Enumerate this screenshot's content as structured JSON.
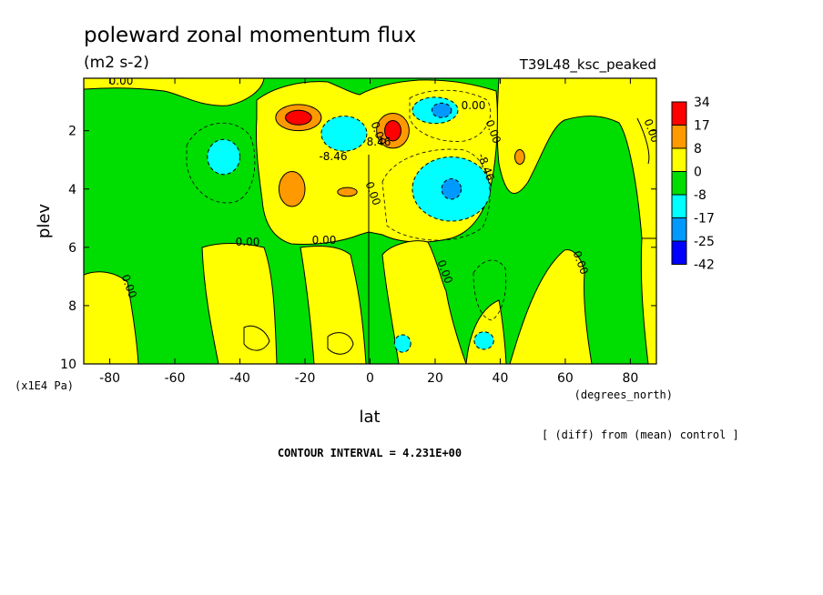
{
  "chart_data": {
    "type": "heatmap",
    "title": "poleward zonal momentum flux",
    "subtitle": "(m2 s-2)",
    "run_label": "T39L48_ksc_peaked",
    "xlabel": "lat",
    "x_units": "(degrees_north)",
    "ylabel": "plev",
    "y_units": "(x1E4 Pa)",
    "xlim": [
      -88,
      88
    ],
    "ylim": [
      10,
      0.2
    ],
    "y_inverted": true,
    "x_ticks": [
      -80,
      -60,
      -40,
      -20,
      0,
      20,
      40,
      60,
      80
    ],
    "y_ticks": [
      2,
      4,
      6,
      8,
      10
    ],
    "colorbar": {
      "levels": [
        "34",
        "17",
        "8",
        "0",
        "-8",
        "-17",
        "-25",
        "-42"
      ],
      "colors": [
        "#ff0000",
        "#ff9900",
        "#ffff00",
        "#00dd00",
        "#00ffff",
        "#0099ff",
        "#0000ff"
      ]
    },
    "background_color": "#00dd00",
    "contour_labels": [
      "0.00",
      "0.00",
      "-8.46",
      "0.00",
      "0.00",
      "0.00",
      "8.46",
      "-8.46",
      "0.00",
      "0.00",
      "0.00",
      "0.00",
      "0.00",
      "0.00"
    ],
    "features": [
      {
        "type": "positive",
        "level": 17,
        "lat": -22,
        "plev": 1.55,
        "rx": 7,
        "ry": 0.45
      },
      {
        "type": "positive",
        "level": 34,
        "lat": -22,
        "plev": 1.55,
        "rx": 4,
        "ry": 0.25
      },
      {
        "type": "positive",
        "level": 17,
        "lat": 7,
        "plev": 2.0,
        "rx": 5,
        "ry": 0.6
      },
      {
        "type": "positive",
        "level": 34,
        "lat": 7,
        "plev": 2.0,
        "rx": 2.5,
        "ry": 0.35
      },
      {
        "type": "positive",
        "level": 17,
        "lat": -24,
        "plev": 4.0,
        "rx": 4,
        "ry": 0.6
      },
      {
        "type": "positive",
        "level": 17,
        "lat": -7,
        "plev": 4.1,
        "rx": 3,
        "ry": 0.15
      },
      {
        "type": "positive",
        "level": 17,
        "lat": 46,
        "plev": 2.9,
        "rx": 1.5,
        "ry": 0.25
      },
      {
        "type": "negative",
        "level": -17,
        "lat": -45,
        "plev": 2.9,
        "rx": 5,
        "ry": 0.6
      },
      {
        "type": "negative",
        "level": -17,
        "lat": -8,
        "plev": 2.1,
        "rx": 7,
        "ry": 0.6
      },
      {
        "type": "negative",
        "level": -17,
        "lat": 20,
        "plev": 1.3,
        "rx": 7,
        "ry": 0.45
      },
      {
        "type": "negative",
        "level": -25,
        "lat": 22,
        "plev": 1.3,
        "rx": 3,
        "ry": 0.25
      },
      {
        "type": "negative",
        "level": -17,
        "lat": 25,
        "plev": 4.0,
        "rx": 12,
        "ry": 1.1
      },
      {
        "type": "negative",
        "level": -25,
        "lat": 25,
        "plev": 4.0,
        "rx": 3,
        "ry": 0.35
      },
      {
        "type": "negative",
        "level": -17,
        "lat": 10,
        "plev": 9.3,
        "rx": 2.5,
        "ry": 0.3
      },
      {
        "type": "negative",
        "level": -17,
        "lat": 35,
        "plev": 9.2,
        "rx": 3,
        "ry": 0.3
      }
    ]
  },
  "footer": {
    "diff_note": "[ (diff) from (mean) control ]",
    "contour_interval": "CONTOUR INTERVAL = 4.231E+00"
  }
}
